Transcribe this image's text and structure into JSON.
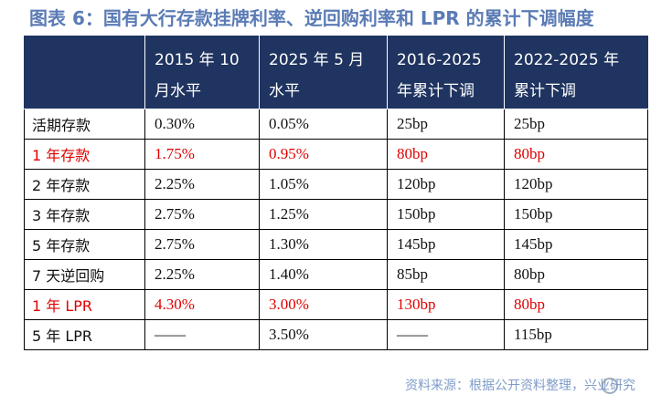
{
  "title": "图表 6：国有大行存款挂牌利率、逆回购利率和 LPR 的累计下调幅度",
  "table": {
    "headers": [
      {
        "line1": "",
        "line2": ""
      },
      {
        "line1": "2015 年 10",
        "line2": "月水平"
      },
      {
        "line1": "2025 年 5 月",
        "line2": "水平"
      },
      {
        "line1": "2016-2025",
        "line2": "年累计下调"
      },
      {
        "line1": "2022-2025 年",
        "line2": "累计下调"
      }
    ],
    "rows": [
      {
        "label": "活期存款",
        "v2015": "0.30%",
        "v2025": "0.05%",
        "d2016": "25bp",
        "d2022": "25bp",
        "highlight": false
      },
      {
        "label": "1 年存款",
        "v2015": "1.75%",
        "v2025": "0.95%",
        "d2016": "80bp",
        "d2022": "80bp",
        "highlight": true
      },
      {
        "label": "2 年存款",
        "v2015": "2.25%",
        "v2025": "1.05%",
        "d2016": "120bp",
        "d2022": "120bp",
        "highlight": false
      },
      {
        "label": "3 年存款",
        "v2015": "2.75%",
        "v2025": "1.25%",
        "d2016": "150bp",
        "d2022": "150bp",
        "highlight": false
      },
      {
        "label": "5 年存款",
        "v2015": "2.75%",
        "v2025": "1.30%",
        "d2016": "145bp",
        "d2022": "145bp",
        "highlight": false
      },
      {
        "label": "7 天逆回购",
        "v2015": "2.25%",
        "v2025": "1.40%",
        "d2016": "85bp",
        "d2022": "80bp",
        "highlight": false
      },
      {
        "label": "1 年 LPR",
        "v2015": "4.30%",
        "v2025": "3.00%",
        "d2016": "130bp",
        "d2022": "80bp",
        "highlight": true
      },
      {
        "label": "5 年 LPR",
        "v2015": "——",
        "v2025": "3.50%",
        "d2016": "——",
        "d2022": "115bp",
        "highlight": false
      }
    ]
  },
  "source": "资料来源：根据公开资料整理，兴业研究",
  "colors": {
    "title": "#5a7bb5",
    "header_bg": "#1f3460",
    "highlight": "#e00000",
    "source": "#7f9cc9"
  }
}
